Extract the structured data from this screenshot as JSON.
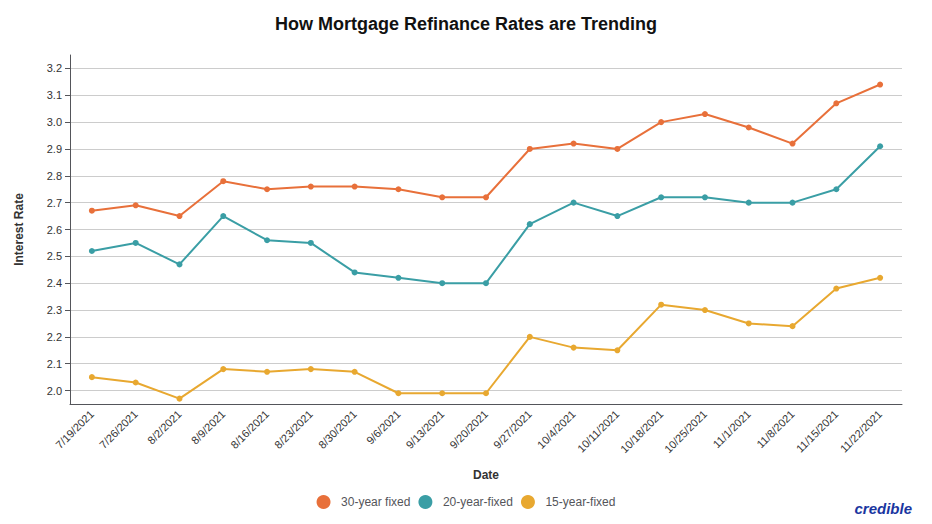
{
  "chart_data": {
    "type": "line",
    "title": "How Mortgage Refinance Rates are Trending",
    "xlabel": "Date",
    "ylabel": "Interest Rate",
    "categories": [
      "7/19/2021",
      "7/26/2021",
      "8/2/2021",
      "8/9/2021",
      "8/16/2021",
      "8/23/2021",
      "8/30/2021",
      "9/6/2021",
      "9/13/2021",
      "9/20/2021",
      "9/27/2021",
      "10/4/2021",
      "10/11/2021",
      "10/18/2021",
      "10/25/2021",
      "11/1/2021",
      "11/8/2021",
      "11/15/2021",
      "11/22/2021"
    ],
    "series": [
      {
        "name": "30-year fixed",
        "color": "#E8703A",
        "values": [
          2.67,
          2.69,
          2.65,
          2.78,
          2.75,
          2.76,
          2.76,
          2.75,
          2.72,
          2.72,
          2.9,
          2.92,
          2.9,
          3.0,
          3.03,
          2.98,
          2.92,
          3.07,
          3.14
        ]
      },
      {
        "name": "20-year-fixed",
        "color": "#3A9EA5",
        "values": [
          2.52,
          2.55,
          2.47,
          2.65,
          2.56,
          2.55,
          2.44,
          2.42,
          2.4,
          2.4,
          2.62,
          2.7,
          2.65,
          2.72,
          2.72,
          2.7,
          2.7,
          2.75,
          2.91
        ]
      },
      {
        "name": "15-year-fixed",
        "color": "#E8A830",
        "values": [
          2.05,
          2.03,
          1.97,
          2.08,
          2.07,
          2.08,
          2.07,
          1.99,
          1.99,
          1.99,
          2.2,
          2.16,
          2.15,
          2.32,
          2.3,
          2.25,
          2.24,
          2.38,
          2.42
        ]
      }
    ],
    "ylim": [
      1.95,
      3.25
    ],
    "yticks": [
      {
        "value": 2.0,
        "label": "2.0"
      },
      {
        "value": 2.1,
        "label": "2.1"
      },
      {
        "value": 2.2,
        "label": "2.2"
      },
      {
        "value": 2.3,
        "label": "2.3"
      },
      {
        "value": 2.4,
        "label": "2.4"
      },
      {
        "value": 2.5,
        "label": "2.5"
      },
      {
        "value": 2.6,
        "label": "2.6"
      },
      {
        "value": 2.7,
        "label": "2.7"
      },
      {
        "value": 2.8,
        "label": "2.8"
      },
      {
        "value": 2.9,
        "label": "2.9"
      },
      {
        "value": 3.0,
        "label": "3.0"
      },
      {
        "value": 3.1,
        "label": "3.1"
      },
      {
        "value": 3.2,
        "label": "3.2"
      }
    ],
    "grid": true,
    "legend": "bottom",
    "marker": "circle",
    "annotations": [
      {
        "text": "credible",
        "color": "#1a35a0"
      }
    ]
  }
}
